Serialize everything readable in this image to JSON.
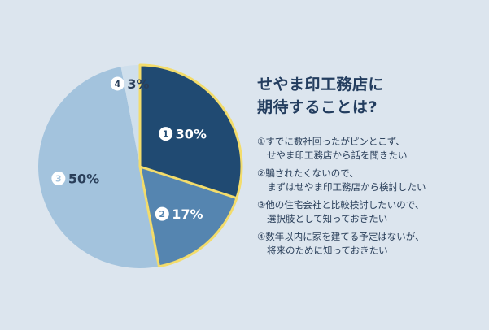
{
  "chart_data": {
    "type": "pie",
    "slices": [
      {
        "badge": "1",
        "value": 30,
        "label": "30%",
        "color": "#204a72",
        "text_color": "#ffffff"
      },
      {
        "badge": "2",
        "value": 17,
        "label": "17%",
        "color": "#5585b0",
        "text_color": "#ffffff"
      },
      {
        "badge": "3",
        "value": 50,
        "label": "50%",
        "color": "#a3c3dd",
        "text_color": "#2a3f5a"
      },
      {
        "badge": "4",
        "value": 3,
        "label": "3%",
        "color": "#cfdfec",
        "text_color": "#2a3f5a"
      }
    ],
    "highlight_color": "#f3dc6b"
  },
  "title": {
    "line1": "せやま印工務店に",
    "line2": "期待することは?"
  },
  "legend": [
    {
      "line1": "①すでに数社回ったがピンとこず、",
      "line2": "せやま印工務店から話を聞きたい"
    },
    {
      "line1": "②騙されたくないので、",
      "line2": "まずはせやま印工務店から検討したい"
    },
    {
      "line1": "③他の住宅会社と比較検討したいので、",
      "line2": "選択肢として知っておきたい"
    },
    {
      "line1": "④数年以内に家を建てる予定はないが、",
      "line2": "将来のために知っておきたい"
    }
  ]
}
